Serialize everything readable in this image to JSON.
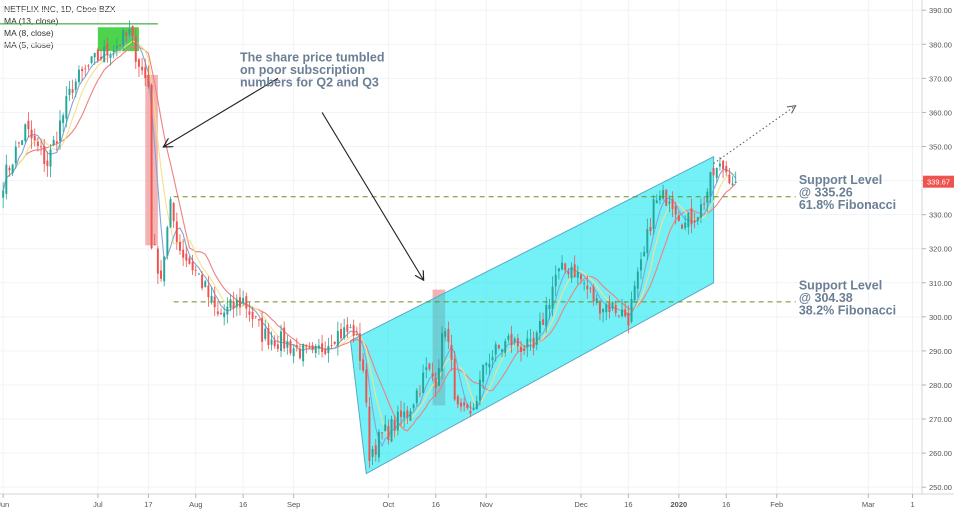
{
  "chart_data": {
    "type": "candlestick",
    "symbol": "NETFLIX INC, 1D, Cboe BZX",
    "indicators": [
      "MA (13, close)",
      "MA (8, close)",
      "MA (5, close)"
    ],
    "y_ticks": [
      250,
      260,
      270,
      280,
      290,
      300,
      310,
      320,
      330,
      340,
      350,
      360,
      370,
      380,
      390
    ],
    "ylim": [
      248,
      393
    ],
    "x_ticks": [
      {
        "label": "Jun",
        "day": 0
      },
      {
        "label": "Jul",
        "day": 30
      },
      {
        "label": "17",
        "day": 46
      },
      {
        "label": "Aug",
        "day": 61
      },
      {
        "label": "16",
        "day": 76
      },
      {
        "label": "Sep",
        "day": 92
      },
      {
        "label": "Oct",
        "day": 122
      },
      {
        "label": "16",
        "day": 137
      },
      {
        "label": "Nov",
        "day": 153
      },
      {
        "label": "Dec",
        "day": 183
      },
      {
        "label": "16",
        "day": 198
      },
      {
        "label": "2020",
        "day": 214
      },
      {
        "label": "16",
        "day": 229
      },
      {
        "label": "Feb",
        "day": 245
      },
      {
        "label": "Mar",
        "day": 274
      },
      {
        "label": "1",
        "day": 288
      }
    ],
    "xlim": [
      -1,
      291
    ],
    "last_price": "339.67",
    "colors": {
      "up": "#26a69a",
      "down": "#ef5350",
      "ma13": "#f08080",
      "ma8": "#f5e08a",
      "ma5": "#7fa8d8",
      "channel": "#00e5f0",
      "price_box": "#e86a6a",
      "green_box": "#2ecc2e",
      "dashed_level": "#6b8e23",
      "annotation": "#6b7f95",
      "price_label_bg": "#ef5350"
    },
    "anchors": [
      {
        "day": 0,
        "price": 340
      },
      {
        "day": 7,
        "price": 355
      },
      {
        "day": 14,
        "price": 345
      },
      {
        "day": 22,
        "price": 368
      },
      {
        "day": 30,
        "price": 376
      },
      {
        "day": 36,
        "price": 380
      },
      {
        "day": 40,
        "price": 383
      },
      {
        "day": 44,
        "price": 372
      },
      {
        "day": 46,
        "price": 368
      },
      {
        "day": 47,
        "price": 322
      },
      {
        "day": 50,
        "price": 312
      },
      {
        "day": 53,
        "price": 332
      },
      {
        "day": 56,
        "price": 320
      },
      {
        "day": 62,
        "price": 312
      },
      {
        "day": 68,
        "price": 300
      },
      {
        "day": 76,
        "price": 305
      },
      {
        "day": 82,
        "price": 295
      },
      {
        "day": 90,
        "price": 292
      },
      {
        "day": 98,
        "price": 288
      },
      {
        "day": 105,
        "price": 295
      },
      {
        "day": 111,
        "price": 296
      },
      {
        "day": 114,
        "price": 285
      },
      {
        "day": 116,
        "price": 260
      },
      {
        "day": 120,
        "price": 265
      },
      {
        "day": 128,
        "price": 272
      },
      {
        "day": 134,
        "price": 284
      },
      {
        "day": 137,
        "price": 282
      },
      {
        "day": 140,
        "price": 298
      },
      {
        "day": 144,
        "price": 272
      },
      {
        "day": 148,
        "price": 270
      },
      {
        "day": 153,
        "price": 287
      },
      {
        "day": 160,
        "price": 293
      },
      {
        "day": 168,
        "price": 290
      },
      {
        "day": 175,
        "price": 312
      },
      {
        "day": 180,
        "price": 315
      },
      {
        "day": 188,
        "price": 304
      },
      {
        "day": 193,
        "price": 303
      },
      {
        "day": 198,
        "price": 300
      },
      {
        "day": 203,
        "price": 318
      },
      {
        "day": 206,
        "price": 333
      },
      {
        "day": 211,
        "price": 336
      },
      {
        "day": 216,
        "price": 327
      },
      {
        "day": 221,
        "price": 332
      },
      {
        "day": 225,
        "price": 342
      },
      {
        "day": 228,
        "price": 344
      },
      {
        "day": 232,
        "price": 339.67
      }
    ],
    "channel": {
      "upper": [
        [
          110,
          293
        ],
        [
          225,
          347
        ]
      ],
      "lower": [
        [
          115,
          254
        ],
        [
          225,
          310
        ]
      ]
    },
    "support_levels": [
      {
        "price": 335.26,
        "day_start": 54,
        "day_end": 251
      },
      {
        "price": 304.38,
        "day_start": 54,
        "day_end": 251
      }
    ],
    "highlight_boxes": [
      {
        "day_start": 45,
        "day_end": 49,
        "price_low": 321,
        "price_high": 371
      },
      {
        "day_start": 136,
        "day_end": 140,
        "price_low": 274,
        "price_high": 308
      }
    ],
    "green_box": {
      "day_start": 30,
      "day_end": 43,
      "price_low": 378,
      "price_high": 385
    },
    "green_line": {
      "day_start": -1,
      "day_end": 49,
      "price": 386
    },
    "projection": {
      "from": [
        225,
        345
      ],
      "to": [
        251,
        362
      ]
    },
    "arrows": [
      {
        "from_point": [
          87,
          370
        ],
        "to_point": [
          51,
          350
        ]
      },
      {
        "from_point": [
          101,
          360
        ],
        "to_point": [
          133,
          311
        ]
      }
    ],
    "annotations": [
      {
        "lines": [
          "The share price tumbled",
          "on poor subscription",
          "numbers for Q2 and Q3"
        ],
        "day": 75,
        "price": 375
      },
      {
        "lines": [
          "Support Level",
          "@ 335.26",
          "61.8% Fibonacci"
        ],
        "day": 252,
        "price": 339
      },
      {
        "lines": [
          "Support Level",
          "@ 304.38",
          "38.2% Fibonacci"
        ],
        "day": 252,
        "price": 308
      }
    ]
  }
}
